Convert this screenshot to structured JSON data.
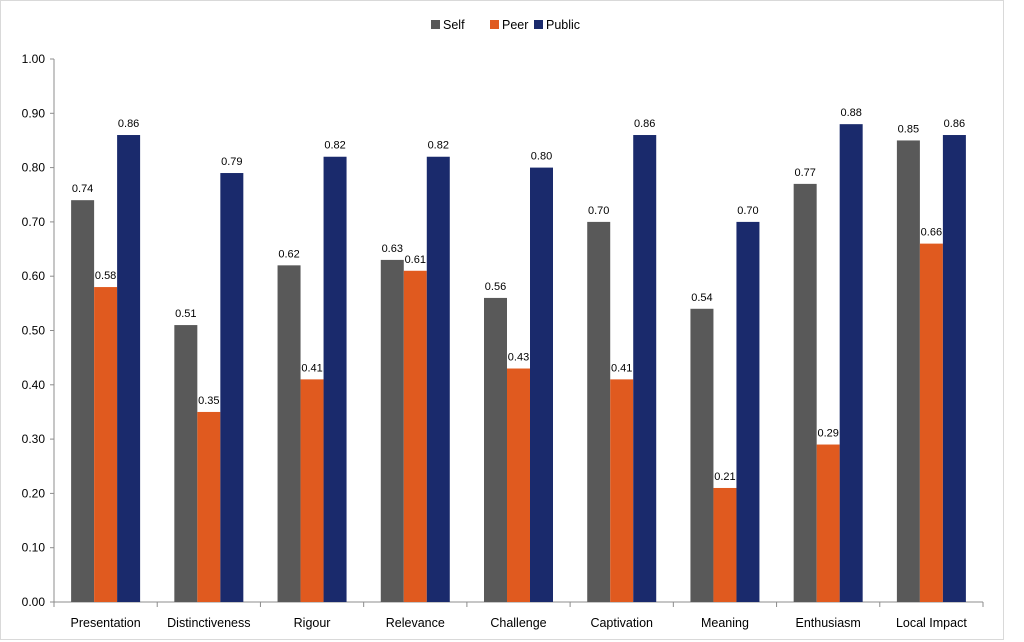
{
  "chart_data": {
    "type": "bar",
    "categories": [
      "Presentation",
      "Distinctiveness",
      "Rigour",
      "Relevance",
      "Challenge",
      "Captivation",
      "Meaning",
      "Enthusiasm",
      "Local Impact"
    ],
    "series": [
      {
        "name": "Self",
        "color": "#595959",
        "values": [
          0.74,
          0.51,
          0.62,
          0.63,
          0.56,
          0.7,
          0.54,
          0.77,
          0.85
        ],
        "labels": [
          "0.74",
          "0.51",
          "0.62",
          "0.63",
          "0.56",
          "0.70",
          "0.54",
          "0.77",
          "0.85"
        ]
      },
      {
        "name": "Peer",
        "color": "#e05a1f",
        "values": [
          0.58,
          0.35,
          0.41,
          0.61,
          0.43,
          0.41,
          0.21,
          0.29,
          0.66
        ],
        "labels": [
          "0.58",
          "0.35",
          "0.41",
          "0.61",
          "0.43",
          "0.41",
          "0.21",
          "0.29",
          "0.66"
        ]
      },
      {
        "name": "Public",
        "color": "#1a2a6c",
        "values": [
          0.86,
          0.79,
          0.82,
          0.82,
          0.8,
          0.86,
          0.7,
          0.88,
          0.86
        ],
        "labels": [
          "0.86",
          "0.79",
          "0.82",
          "0.82",
          "0.80",
          "0.86",
          "0.70",
          "0.88",
          "0.86"
        ]
      }
    ],
    "yticks": [
      "0.00",
      "0.10",
      "0.20",
      "0.30",
      "0.40",
      "0.50",
      "0.60",
      "0.70",
      "0.80",
      "0.90",
      "1.00"
    ],
    "ylim": [
      0,
      1.0
    ],
    "grid": false,
    "legend_position": "top-center"
  }
}
